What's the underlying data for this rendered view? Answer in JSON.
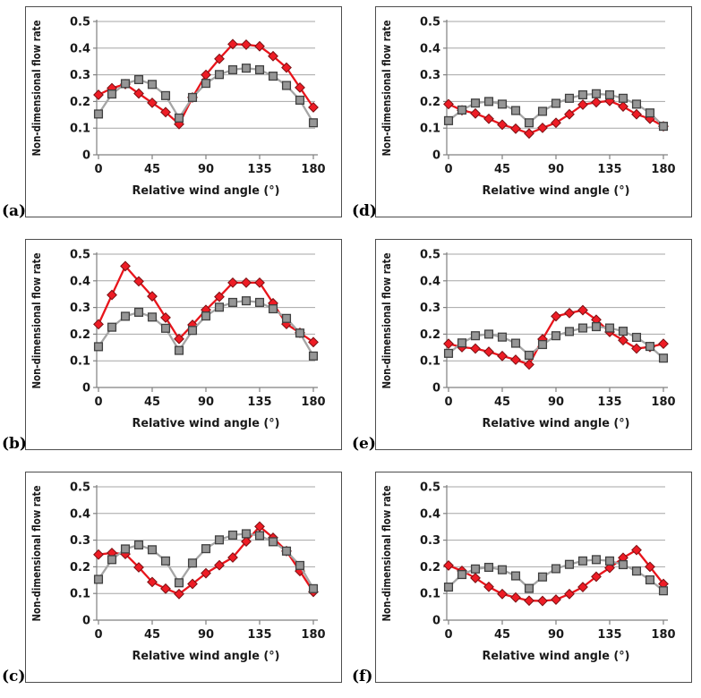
{
  "figure": {
    "xlabel": "Relative wind angle (°)",
    "ylabel": "Non-dimensional flow rate",
    "x_ticks": [
      0,
      45,
      90,
      135,
      180
    ],
    "y_ticks": [
      0,
      0.1,
      0.2,
      0.3,
      0.4,
      0.5
    ],
    "xlim": [
      0,
      180
    ],
    "ylim": [
      0,
      0.5
    ],
    "grid": "horizontal"
  },
  "colors": {
    "red_line": "#e8141b",
    "red_marker_fill": "#ee1c25",
    "red_marker_stroke": "#7a1013",
    "gray_line": "#a5a5a5",
    "gray_marker_fill": "#969696",
    "gray_marker_stroke": "#404040",
    "gridline": "#a6a6a6",
    "axis": "#808080",
    "text": "#1a1a1a",
    "panel_border": "#4d4d4d"
  },
  "chart_data": [
    {
      "type": "line",
      "panel_label": "(a)",
      "title": "",
      "xlabel": "Relative wind angle (°)",
      "ylabel": "Non-dimensional flow rate",
      "x": [
        0,
        11.25,
        22.5,
        33.75,
        45,
        56.25,
        67.5,
        78.75,
        90,
        101.25,
        112.5,
        123.75,
        135,
        146.25,
        157.5,
        168.75,
        180
      ],
      "series": [
        {
          "name": "red-diamond",
          "values": [
            0.225,
            0.25,
            0.265,
            0.23,
            0.195,
            0.16,
            0.115,
            0.215,
            0.3,
            0.36,
            0.415,
            0.413,
            0.407,
            0.37,
            0.327,
            0.252,
            0.178
          ]
        },
        {
          "name": "gray-square",
          "values": [
            0.153,
            0.228,
            0.267,
            0.282,
            0.264,
            0.222,
            0.138,
            0.215,
            0.268,
            0.301,
            0.319,
            0.325,
            0.319,
            0.295,
            0.26,
            0.205,
            0.12
          ]
        }
      ]
    },
    {
      "type": "line",
      "panel_label": "(b)",
      "title": "",
      "xlabel": "Relative wind angle (°)",
      "ylabel": "Non-dimensional flow rate",
      "x": [
        0,
        11.25,
        22.5,
        33.75,
        45,
        56.25,
        67.5,
        78.75,
        90,
        101.25,
        112.5,
        123.75,
        135,
        146.25,
        157.5,
        168.75,
        180
      ],
      "series": [
        {
          "name": "red-diamond",
          "values": [
            0.237,
            0.347,
            0.455,
            0.398,
            0.342,
            0.262,
            0.182,
            0.235,
            0.291,
            0.34,
            0.393,
            0.393,
            0.393,
            0.316,
            0.238,
            0.205,
            0.17
          ]
        },
        {
          "name": "gray-square",
          "values": [
            0.153,
            0.226,
            0.267,
            0.282,
            0.264,
            0.222,
            0.139,
            0.214,
            0.268,
            0.301,
            0.319,
            0.325,
            0.319,
            0.295,
            0.259,
            0.204,
            0.118
          ]
        }
      ]
    },
    {
      "type": "line",
      "panel_label": "(c)",
      "title": "",
      "xlabel": "Relative wind angle (°)",
      "ylabel": "Non-dimensional flow rate",
      "x": [
        0,
        11.25,
        22.5,
        33.75,
        45,
        56.25,
        67.5,
        78.75,
        90,
        101.25,
        112.5,
        123.75,
        135,
        146.25,
        157.5,
        168.75,
        180
      ],
      "series": [
        {
          "name": "red-diamond",
          "values": [
            0.246,
            0.252,
            0.248,
            0.198,
            0.143,
            0.118,
            0.098,
            0.136,
            0.176,
            0.206,
            0.235,
            0.295,
            0.351,
            0.309,
            0.259,
            0.184,
            0.106
          ]
        },
        {
          "name": "gray-square",
          "values": [
            0.153,
            0.227,
            0.267,
            0.282,
            0.264,
            0.222,
            0.14,
            0.214,
            0.268,
            0.301,
            0.319,
            0.324,
            0.317,
            0.294,
            0.259,
            0.205,
            0.118
          ]
        }
      ]
    },
    {
      "type": "line",
      "panel_label": "(d)",
      "title": "",
      "xlabel": "Relative wind angle (°)",
      "ylabel": "Non-dimensional flow rate",
      "x": [
        0,
        11.25,
        22.5,
        33.75,
        45,
        56.25,
        67.5,
        78.75,
        90,
        101.25,
        112.5,
        123.75,
        135,
        146.25,
        157.5,
        168.75,
        180
      ],
      "series": [
        {
          "name": "red-diamond",
          "values": [
            0.19,
            0.167,
            0.155,
            0.135,
            0.113,
            0.098,
            0.08,
            0.101,
            0.12,
            0.152,
            0.188,
            0.197,
            0.202,
            0.181,
            0.152,
            0.135,
            0.107
          ]
        },
        {
          "name": "gray-square",
          "values": [
            0.128,
            0.168,
            0.194,
            0.2,
            0.19,
            0.166,
            0.12,
            0.163,
            0.193,
            0.212,
            0.225,
            0.229,
            0.225,
            0.212,
            0.19,
            0.157,
            0.107
          ]
        }
      ]
    },
    {
      "type": "line",
      "panel_label": "(e)",
      "title": "",
      "xlabel": "Relative wind angle (°)",
      "ylabel": "Non-dimensional flow rate",
      "x": [
        0,
        11.25,
        22.5,
        33.75,
        45,
        56.25,
        67.5,
        78.75,
        90,
        101.25,
        112.5,
        123.75,
        135,
        146.25,
        157.5,
        168.75,
        180
      ],
      "series": [
        {
          "name": "red-diamond",
          "values": [
            0.164,
            0.151,
            0.146,
            0.134,
            0.118,
            0.104,
            0.086,
            0.181,
            0.267,
            0.279,
            0.29,
            0.254,
            0.208,
            0.177,
            0.146,
            0.152,
            0.164
          ]
        },
        {
          "name": "gray-square",
          "values": [
            0.128,
            0.167,
            0.194,
            0.2,
            0.189,
            0.166,
            0.121,
            0.161,
            0.194,
            0.21,
            0.223,
            0.228,
            0.223,
            0.211,
            0.188,
            0.154,
            0.11
          ]
        }
      ]
    },
    {
      "type": "line",
      "panel_label": "(f)",
      "title": "",
      "xlabel": "Relative wind angle (°)",
      "ylabel": "Non-dimensional flow rate",
      "x": [
        0,
        11.25,
        22.5,
        33.75,
        45,
        56.25,
        67.5,
        78.75,
        90,
        101.25,
        112.5,
        123.75,
        135,
        146.25,
        157.5,
        168.75,
        180
      ],
      "series": [
        {
          "name": "red-diamond",
          "values": [
            0.205,
            0.185,
            0.158,
            0.125,
            0.098,
            0.085,
            0.073,
            0.072,
            0.077,
            0.098,
            0.124,
            0.163,
            0.196,
            0.234,
            0.263,
            0.2,
            0.136
          ]
        },
        {
          "name": "gray-square",
          "values": [
            0.124,
            0.171,
            0.192,
            0.198,
            0.189,
            0.166,
            0.119,
            0.162,
            0.193,
            0.209,
            0.222,
            0.227,
            0.222,
            0.208,
            0.184,
            0.151,
            0.11
          ]
        }
      ]
    }
  ]
}
